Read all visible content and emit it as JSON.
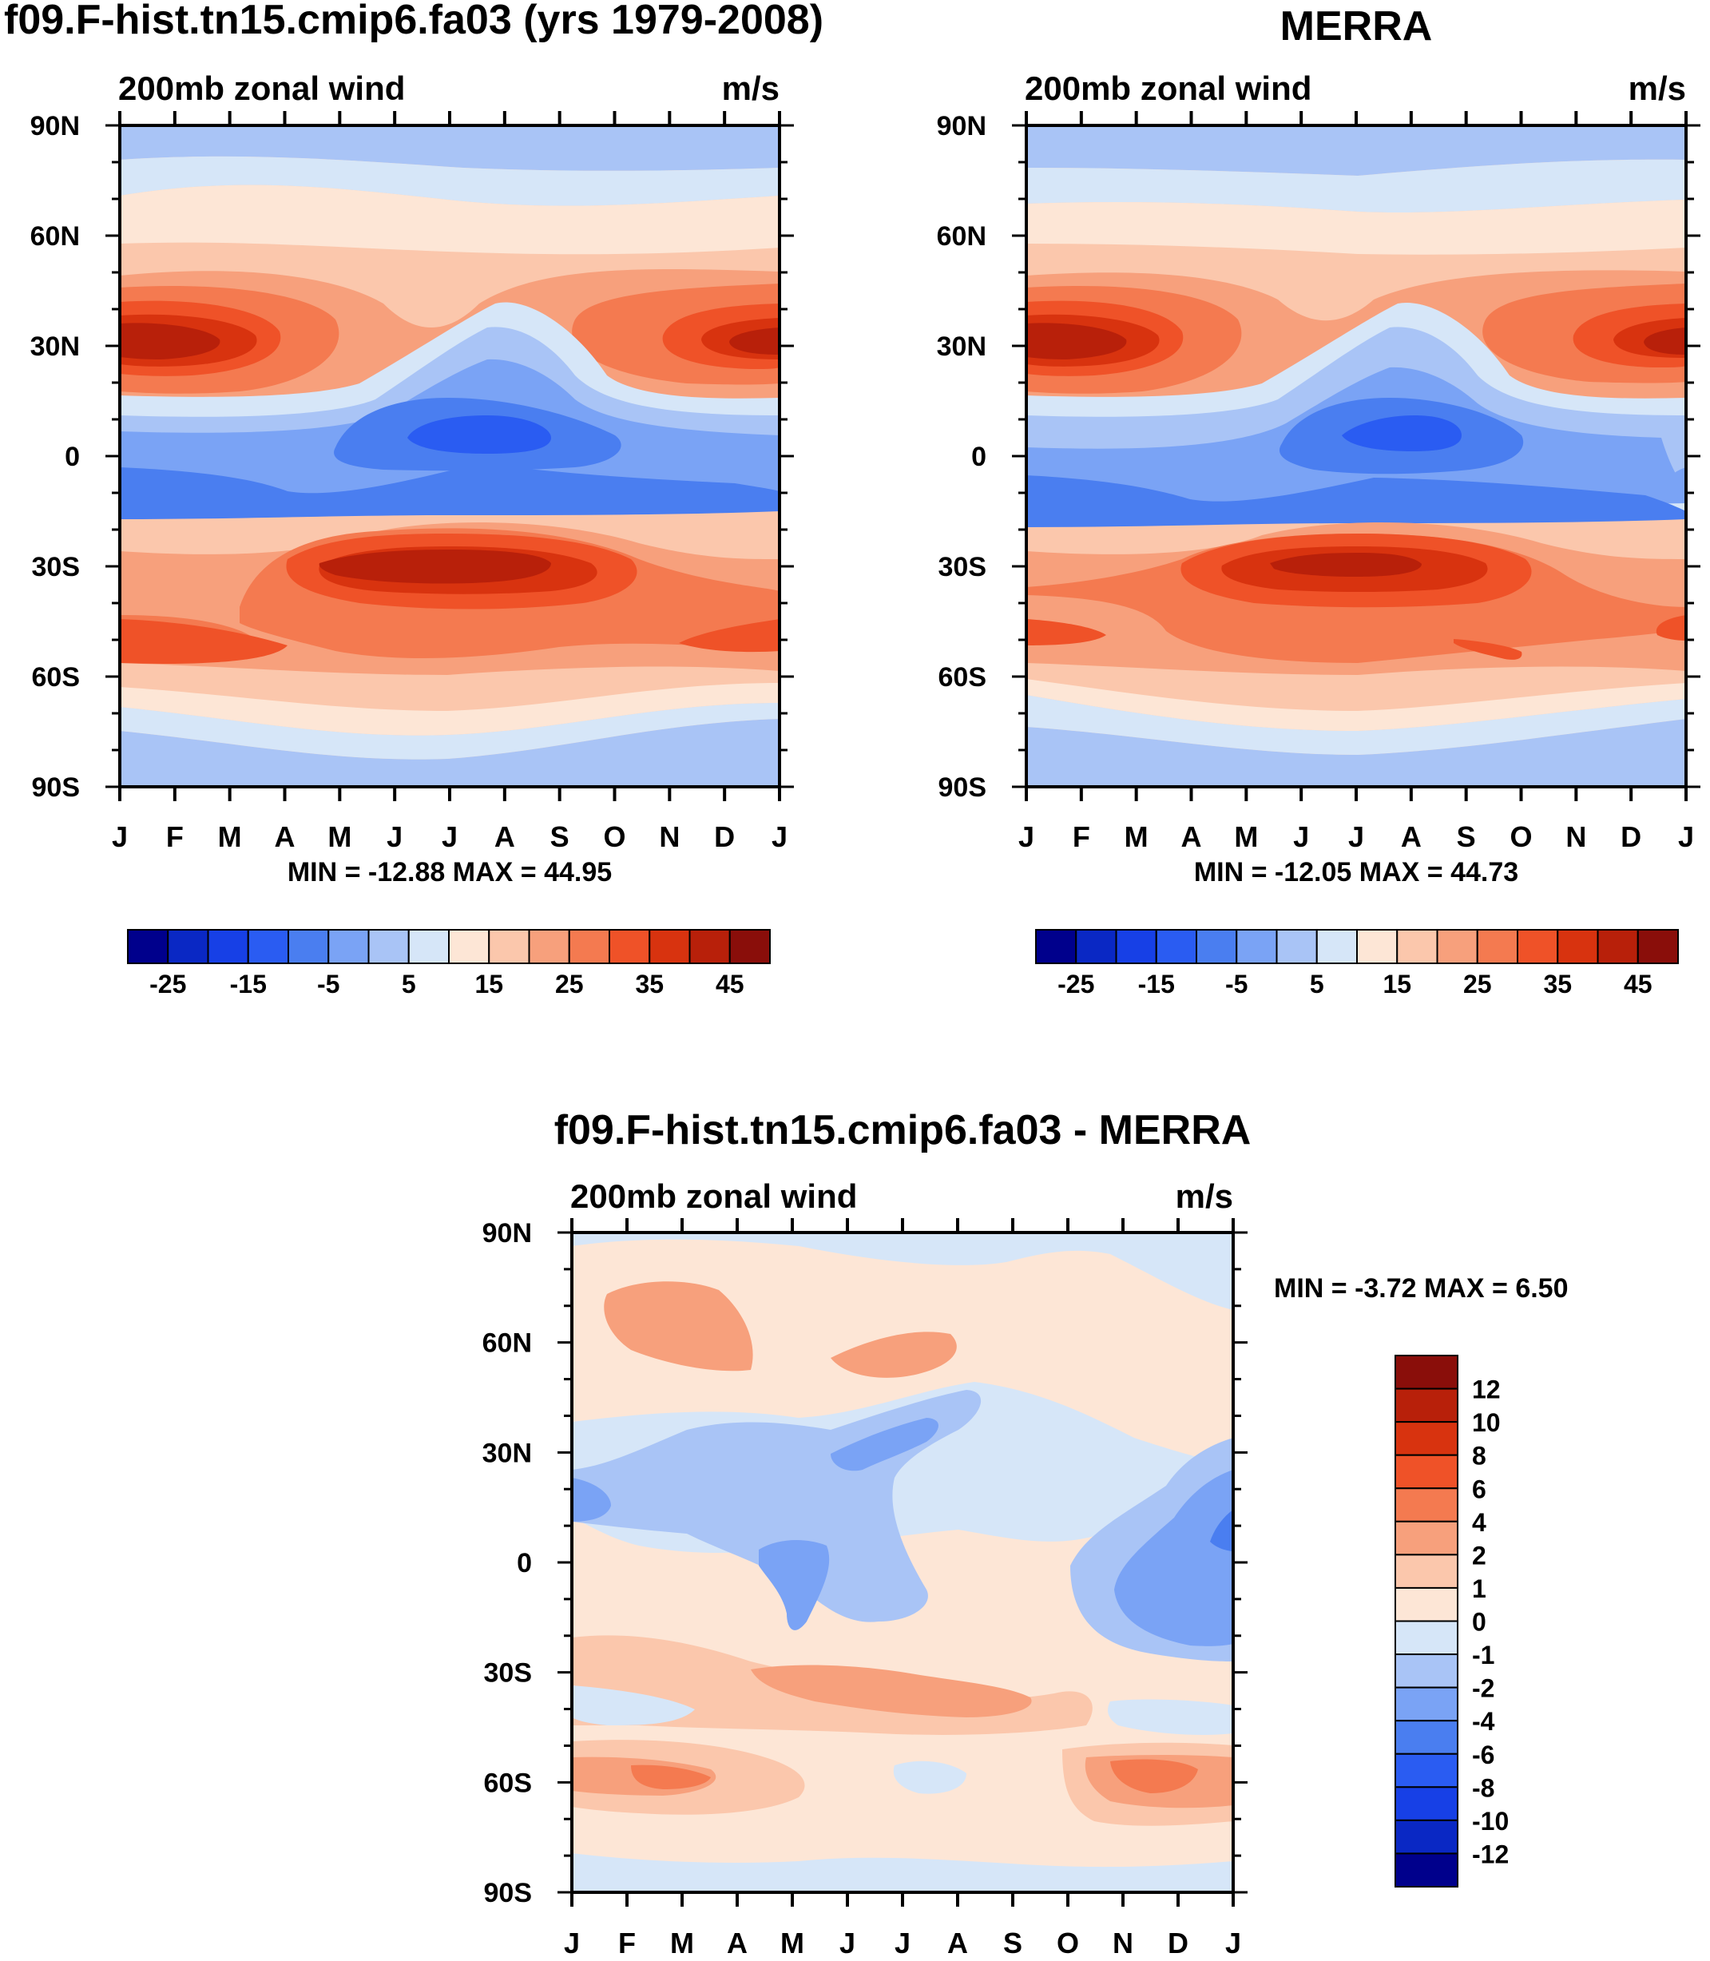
{
  "chart_data": [
    {
      "type": "heatmap",
      "panel": "model",
      "title": "f09.F-hist.tn15.cmip6.fa03 (yrs 1979-2008)",
      "subtitle": "200mb zonal wind",
      "units": "m/s",
      "x_tick_labels": [
        "J",
        "F",
        "M",
        "A",
        "M",
        "J",
        "J",
        "A",
        "S",
        "O",
        "N",
        "D",
        "J"
      ],
      "y_tick_labels": [
        "90N",
        "60N",
        "30N",
        "0",
        "30S",
        "60S",
        "90S"
      ],
      "y_values": [
        90,
        60,
        30,
        0,
        -30,
        -60,
        -90
      ],
      "ylim": [
        -90,
        90
      ],
      "stats_text": "MIN = -12.88 MAX =  44.95",
      "min": -12.88,
      "max": 44.95,
      "colorbar": {
        "orientation": "horizontal",
        "levels": [
          -30,
          -25,
          -20,
          -15,
          -10,
          -5,
          0,
          5,
          10,
          15,
          20,
          25,
          30,
          35,
          40,
          45
        ],
        "labels": [
          "-25",
          "-15",
          "-5",
          "5",
          "15",
          "25",
          "35",
          "45"
        ]
      }
    },
    {
      "type": "heatmap",
      "panel": "obs",
      "title": "MERRA",
      "subtitle": "200mb zonal wind",
      "units": "m/s",
      "x_tick_labels": [
        "J",
        "F",
        "M",
        "A",
        "M",
        "J",
        "J",
        "A",
        "S",
        "O",
        "N",
        "D",
        "J"
      ],
      "y_tick_labels": [
        "90N",
        "60N",
        "30N",
        "0",
        "30S",
        "60S",
        "90S"
      ],
      "y_values": [
        90,
        60,
        30,
        0,
        -30,
        -60,
        -90
      ],
      "ylim": [
        -90,
        90
      ],
      "stats_text": "MIN = -12.05 MAX =  44.73",
      "min": -12.05,
      "max": 44.73,
      "colorbar": {
        "orientation": "horizontal",
        "levels": [
          -30,
          -25,
          -20,
          -15,
          -10,
          -5,
          0,
          5,
          10,
          15,
          20,
          25,
          30,
          35,
          40,
          45
        ],
        "labels": [
          "-25",
          "-15",
          "-5",
          "5",
          "15",
          "25",
          "35",
          "45"
        ]
      }
    },
    {
      "type": "heatmap",
      "panel": "diff",
      "title": "f09.F-hist.tn15.cmip6.fa03 - MERRA",
      "subtitle": "200mb zonal wind",
      "units": "m/s",
      "x_tick_labels": [
        "J",
        "F",
        "M",
        "A",
        "M",
        "J",
        "J",
        "A",
        "S",
        "O",
        "N",
        "D",
        "J"
      ],
      "y_tick_labels": [
        "90N",
        "60N",
        "30N",
        "0",
        "30S",
        "60S",
        "90S"
      ],
      "y_values": [
        90,
        60,
        30,
        0,
        -30,
        -60,
        -90
      ],
      "ylim": [
        -90,
        90
      ],
      "stats_text": "MIN =  -3.72 MAX =   6.50",
      "min": -3.72,
      "max": 6.5,
      "colorbar": {
        "orientation": "vertical",
        "levels": [
          -12,
          -10,
          -8,
          -6,
          -4,
          -2,
          -1,
          0,
          1,
          2,
          4,
          6,
          8,
          10,
          12
        ],
        "labels": [
          "12",
          "10",
          "8",
          "6",
          "4",
          "2",
          "1",
          "0",
          "-1",
          "-2",
          "-4",
          "-6",
          "-8",
          "-10",
          "-12"
        ]
      }
    }
  ],
  "palette_cool_to_warm": [
    "#00008c",
    "#0a28c4",
    "#1740e6",
    "#2a5cf2",
    "#4a7ef0",
    "#7aa3f5",
    "#a9c4f6",
    "#d6e6f8",
    "#fde6d6",
    "#fbc7ac",
    "#f7a07c",
    "#f47a50",
    "#ef5228",
    "#d8330f",
    "#b8200a",
    "#8a0e0a"
  ]
}
